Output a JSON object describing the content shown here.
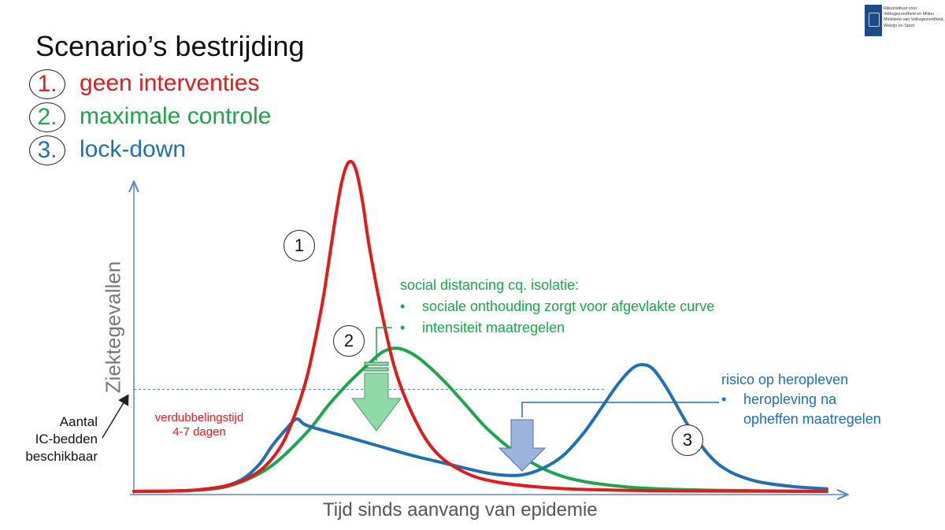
{
  "title": "Scenario’s bestrijding",
  "legend": [
    {
      "number": "1.",
      "label": "geen interventies",
      "color": "#e41a1a"
    },
    {
      "number": "2.",
      "label": "maximale controle",
      "color": "#1aa64a"
    },
    {
      "number": "3.",
      "label": "lock-down",
      "color": "#1f6fb4"
    }
  ],
  "logo": {
    "icon": "crown-crest-icon",
    "text": "Rijksinstituut voor Volksgezondheid en Milieu\nMinisterie van Volksgezondheid, Welzijn en Sport"
  },
  "chart_data": {
    "type": "line",
    "xlabel": "Tijd sinds aanvang van epidemie",
    "ylabel": "Ziektegevallen",
    "xlim": [
      0,
      100
    ],
    "ylim": [
      0,
      100
    ],
    "capacity_line": {
      "y": 31,
      "label": [
        "Aantal",
        "IC-bedden",
        "beschikbaar"
      ]
    },
    "series": [
      {
        "name": "1",
        "color": "#e41a1a",
        "x": [
          0,
          8,
          14,
          18,
          21,
          23,
          25,
          27,
          28,
          29,
          30,
          31,
          32,
          33,
          34,
          36,
          38,
          41,
          44,
          48,
          52,
          58,
          65,
          75,
          85,
          100
        ],
        "y": [
          0,
          0.3,
          2,
          6,
          13,
          22,
          35,
          55,
          68,
          82,
          94,
          100,
          98,
          88,
          74,
          52,
          35,
          20,
          11,
          5.5,
          3,
          1.4,
          0.6,
          0.2,
          0.1,
          0
        ]
      },
      {
        "name": "2",
        "color": "#1aa64a",
        "x": [
          0,
          10,
          15,
          20,
          25,
          28,
          31,
          34,
          36,
          38,
          40,
          42,
          45,
          48,
          51,
          55,
          60,
          65,
          72,
          80,
          90,
          100
        ],
        "y": [
          0,
          0.5,
          2.5,
          8,
          18,
          26,
          33,
          39,
          42.5,
          43.5,
          42,
          39,
          33,
          26,
          19,
          12,
          6,
          3,
          1.2,
          0.5,
          0.2,
          0
        ]
      },
      {
        "name": "3",
        "color": "#1f6fb4",
        "x": [
          0,
          10,
          15,
          18,
          20,
          22,
          23.5,
          25,
          30,
          35,
          40,
          45,
          50,
          53,
          56,
          59,
          62,
          65,
          68,
          70,
          72,
          73.5,
          75,
          77,
          80,
          83,
          86,
          90,
          95,
          100
        ],
        "y": [
          0,
          0.5,
          3,
          8,
          14,
          19,
          22,
          20,
          17,
          14,
          11,
          8.5,
          6,
          5,
          5,
          7,
          11,
          18,
          27,
          33,
          37.5,
          38.5,
          37,
          31,
          20,
          11,
          6,
          3,
          1.5,
          0.8
        ]
      }
    ],
    "annotations": {
      "doubling": [
        "verdubbelingstijd",
        "4-7 dagen"
      ],
      "distancing": {
        "head": "social distancing cq. isolatie:",
        "bullets": [
          "sociale onthouding zorgt voor afgevlakte curve",
          "intensiteit maatregelen"
        ]
      },
      "resurgence": {
        "head": "risico op heropleven",
        "bullets": [
          "heropleving na",
          "opheffen maatregelen"
        ]
      }
    },
    "colors": {
      "arrow_green": "#8fd9a6",
      "arrow_blue": "#9bb3dd",
      "capacity_line": "#4a78c0",
      "axis": "#5a86c8"
    }
  }
}
